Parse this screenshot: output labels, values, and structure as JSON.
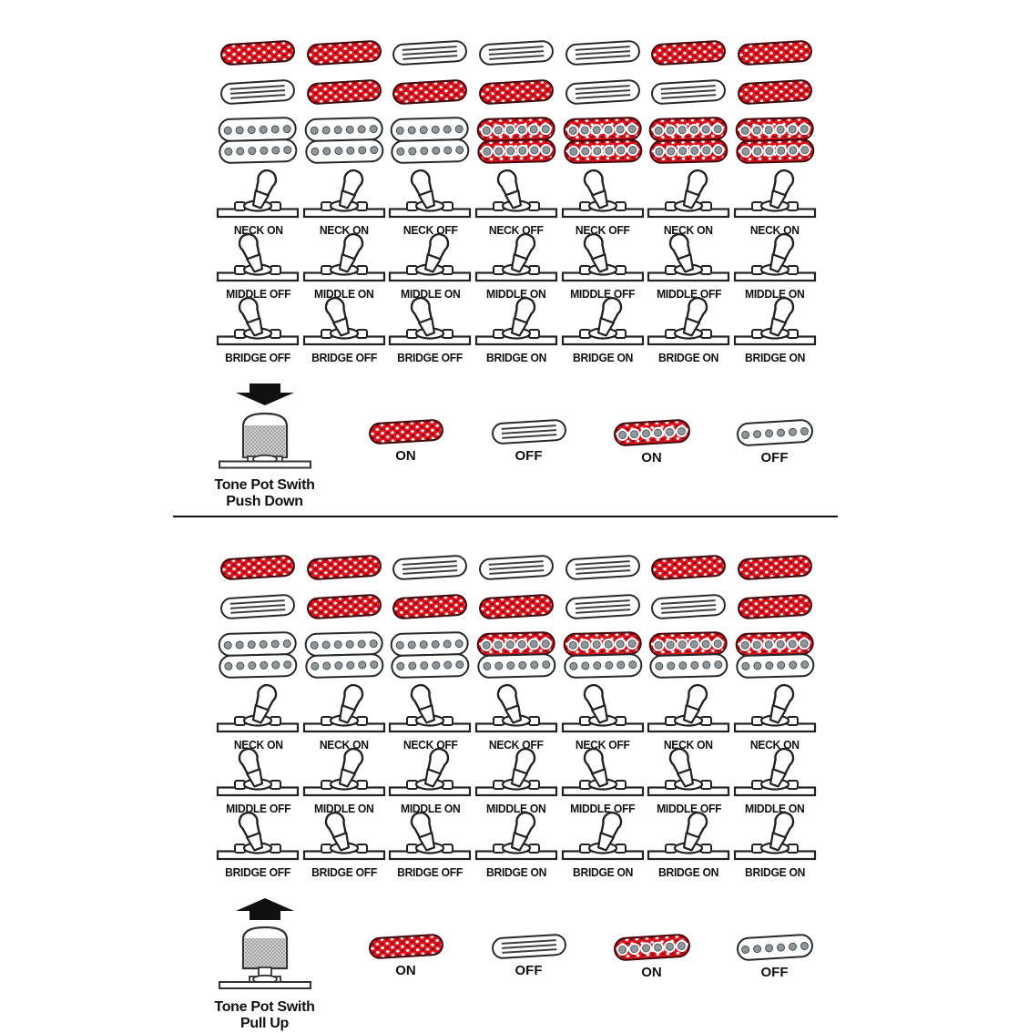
{
  "colors": {
    "pickup_on_red": "#df141f",
    "pickup_outline": "#26292b",
    "pole_gray": "#8f979b",
    "divider_black": "#111111"
  },
  "legend": {
    "items": [
      {
        "label": "ON",
        "pickup": "rail-red"
      },
      {
        "label": "OFF",
        "pickup": "rail-white"
      },
      {
        "label": "ON",
        "pickup": "pole-red"
      },
      {
        "label": "OFF",
        "pickup": "pole-white"
      }
    ]
  },
  "sections": [
    {
      "name": "tone-pot-push-down",
      "tone_pot": {
        "arrow": "down",
        "label_line1": "Tone Pot Swith",
        "label_line2": "Push Down"
      },
      "columns": [
        {
          "neck_pickup": "rail-red",
          "middle_pickup": "rail-white",
          "bridge_pickup": "hum-white",
          "neck_switch": "on",
          "middle_switch": "off",
          "bridge_switch": "off",
          "neck_label": "NECK ON",
          "middle_label": "MIDDLE OFF",
          "bridge_label": "BRIDGE OFF"
        },
        {
          "neck_pickup": "rail-red",
          "middle_pickup": "rail-red",
          "bridge_pickup": "hum-white",
          "neck_switch": "on",
          "middle_switch": "on",
          "bridge_switch": "off",
          "neck_label": "NECK ON",
          "middle_label": "MIDDLE ON",
          "bridge_label": "BRIDGE OFF"
        },
        {
          "neck_pickup": "rail-white",
          "middle_pickup": "rail-red",
          "bridge_pickup": "hum-white",
          "neck_switch": "off",
          "middle_switch": "on",
          "bridge_switch": "off",
          "neck_label": "NECK OFF",
          "middle_label": "MIDDLE ON",
          "bridge_label": "BRIDGE OFF"
        },
        {
          "neck_pickup": "rail-white",
          "middle_pickup": "rail-red",
          "bridge_pickup": "hum-red",
          "neck_switch": "off",
          "middle_switch": "on",
          "bridge_switch": "on",
          "neck_label": "NECK OFF",
          "middle_label": "MIDDLE ON",
          "bridge_label": "BRIDGE ON"
        },
        {
          "neck_pickup": "rail-white",
          "middle_pickup": "rail-white",
          "bridge_pickup": "hum-red",
          "neck_switch": "off",
          "middle_switch": "off",
          "bridge_switch": "on",
          "neck_label": "NECK OFF",
          "middle_label": "MIDDLE OFF",
          "bridge_label": "BRIDGE ON"
        },
        {
          "neck_pickup": "rail-red",
          "middle_pickup": "rail-white",
          "bridge_pickup": "hum-red",
          "neck_switch": "on",
          "middle_switch": "off",
          "bridge_switch": "on",
          "neck_label": "NECK ON",
          "middle_label": "MIDDLE OFF",
          "bridge_label": "BRIDGE ON"
        },
        {
          "neck_pickup": "rail-red",
          "middle_pickup": "rail-red",
          "bridge_pickup": "hum-red",
          "neck_switch": "on",
          "middle_switch": "on",
          "bridge_switch": "on",
          "neck_label": "NECK ON",
          "middle_label": "MIDDLE ON",
          "bridge_label": "BRIDGE ON"
        }
      ]
    },
    {
      "name": "tone-pot-pull-up",
      "tone_pot": {
        "arrow": "up",
        "label_line1": "Tone Pot Swith",
        "label_line2": "Pull Up"
      },
      "columns": [
        {
          "neck_pickup": "rail-red",
          "middle_pickup": "rail-white",
          "bridge_pickup": "hum-white",
          "neck_switch": "on",
          "middle_switch": "off",
          "bridge_switch": "off",
          "neck_label": "NECK ON",
          "middle_label": "MIDDLE OFF",
          "bridge_label": "BRIDGE OFF"
        },
        {
          "neck_pickup": "rail-red",
          "middle_pickup": "rail-red",
          "bridge_pickup": "hum-white",
          "neck_switch": "on",
          "middle_switch": "on",
          "bridge_switch": "off",
          "neck_label": "NECK ON",
          "middle_label": "MIDDLE ON",
          "bridge_label": "BRIDGE OFF"
        },
        {
          "neck_pickup": "rail-white",
          "middle_pickup": "rail-red",
          "bridge_pickup": "hum-white",
          "neck_switch": "off",
          "middle_switch": "on",
          "bridge_switch": "off",
          "neck_label": "NECK OFF",
          "middle_label": "MIDDLE ON",
          "bridge_label": "BRIDGE OFF"
        },
        {
          "neck_pickup": "rail-white",
          "middle_pickup": "rail-red",
          "bridge_pickup": "hum-split",
          "neck_switch": "off",
          "middle_switch": "on",
          "bridge_switch": "on",
          "neck_label": "NECK OFF",
          "middle_label": "MIDDLE ON",
          "bridge_label": "BRIDGE ON"
        },
        {
          "neck_pickup": "rail-white",
          "middle_pickup": "rail-white",
          "bridge_pickup": "hum-split",
          "neck_switch": "off",
          "middle_switch": "off",
          "bridge_switch": "on",
          "neck_label": "NECK OFF",
          "middle_label": "MIDDLE OFF",
          "bridge_label": "BRIDGE ON"
        },
        {
          "neck_pickup": "rail-red",
          "middle_pickup": "rail-white",
          "bridge_pickup": "hum-split",
          "neck_switch": "on",
          "middle_switch": "off",
          "bridge_switch": "on",
          "neck_label": "NECK ON",
          "middle_label": "MIDDLE OFF",
          "bridge_label": "BRIDGE ON"
        },
        {
          "neck_pickup": "rail-red",
          "middle_pickup": "rail-red",
          "bridge_pickup": "hum-split",
          "neck_switch": "on",
          "middle_switch": "on",
          "bridge_switch": "on",
          "neck_label": "NECK ON",
          "middle_label": "MIDDLE ON",
          "bridge_label": "BRIDGE ON"
        }
      ]
    }
  ]
}
